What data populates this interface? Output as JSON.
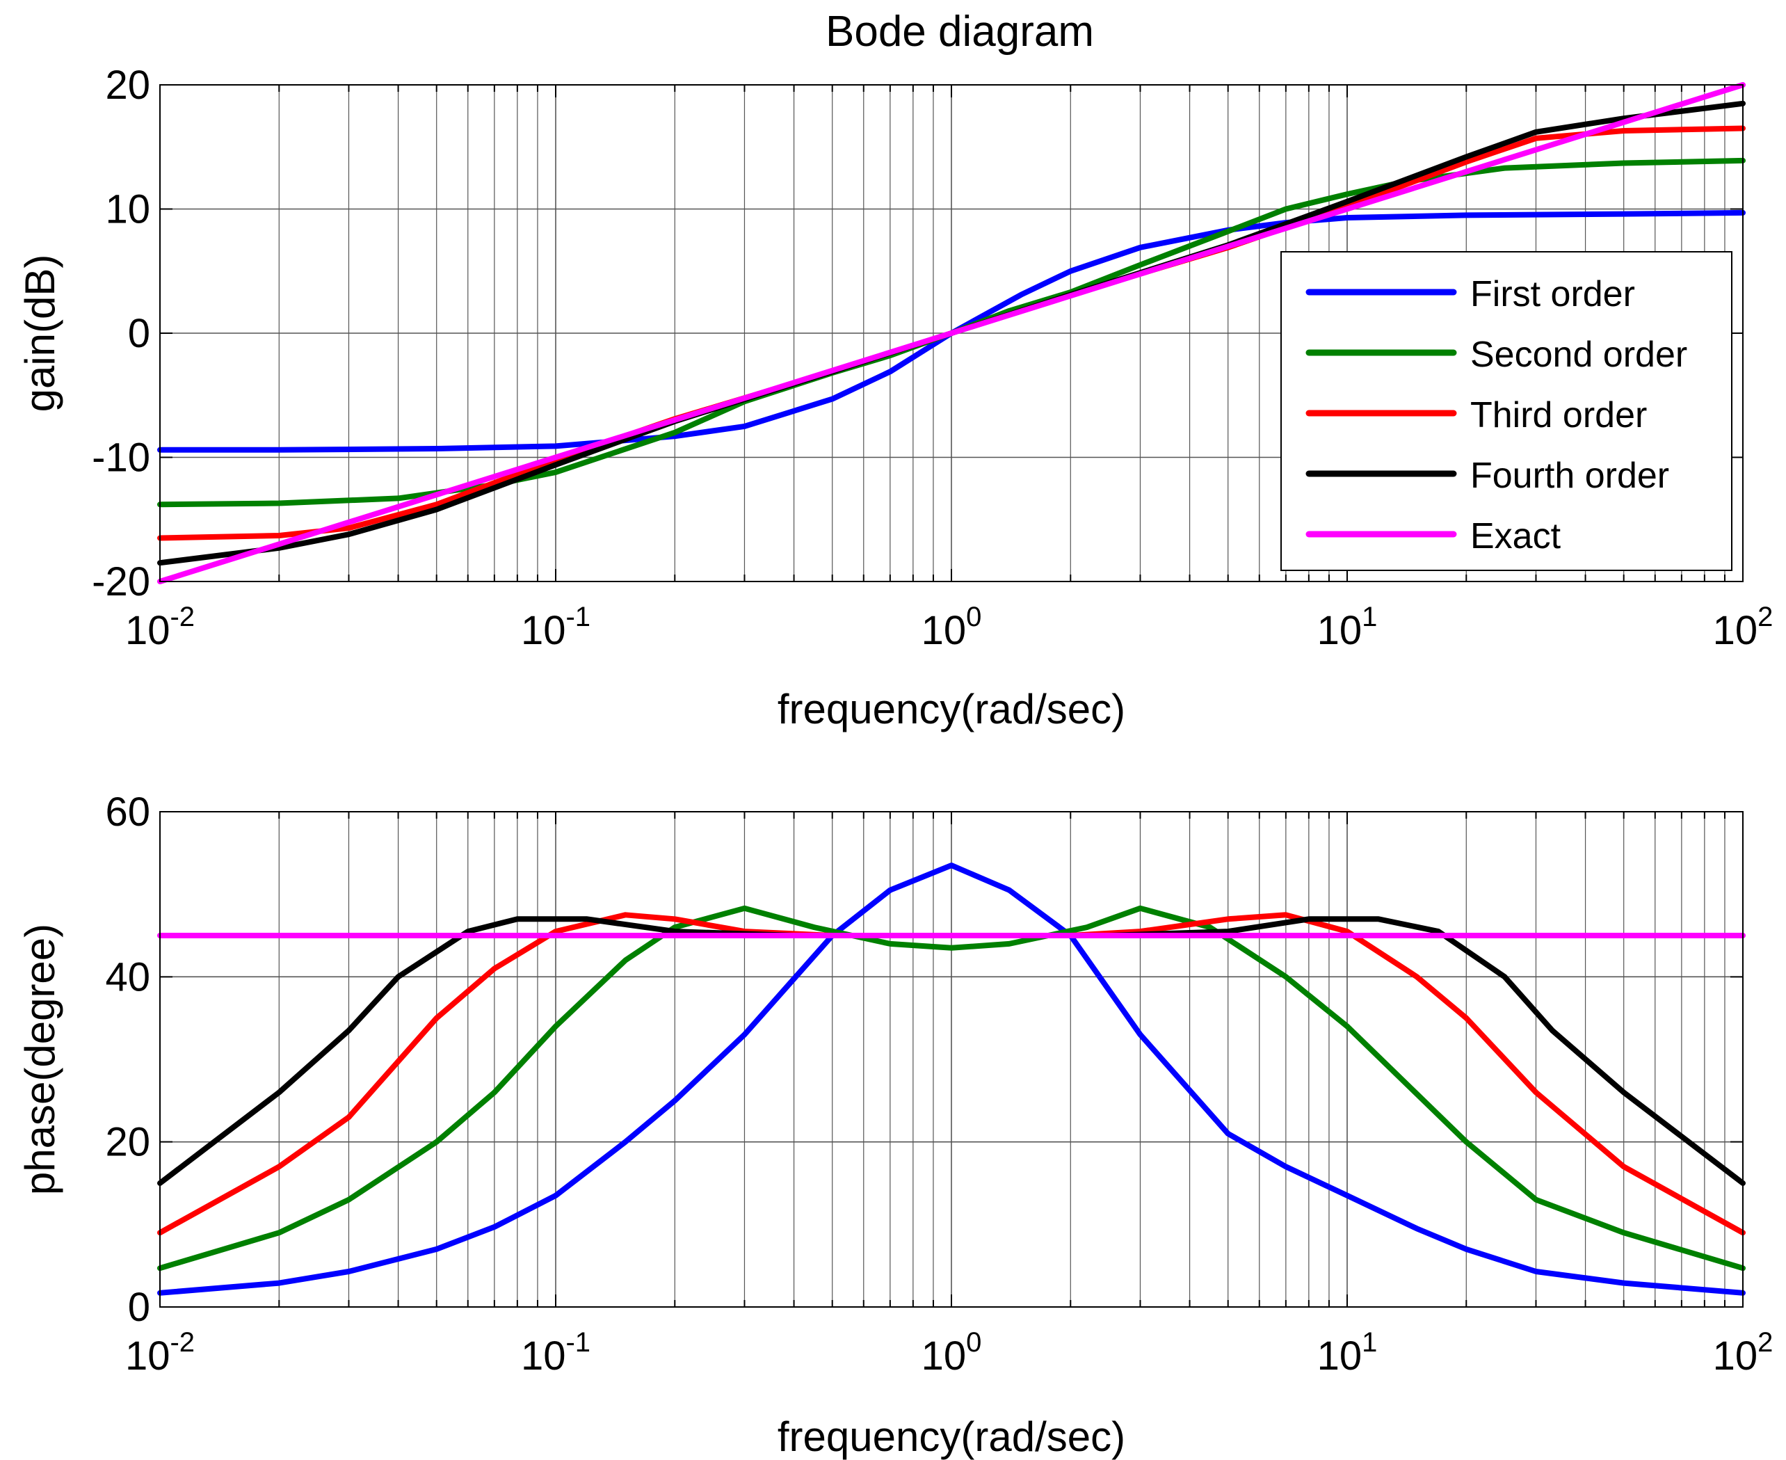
{
  "title": "Bode diagram",
  "colors": {
    "first": "#0000ff",
    "second": "#008000",
    "third": "#ff0000",
    "fourth": "#000000",
    "exact": "#ff00ff"
  },
  "chart_data": [
    {
      "id": "gain",
      "type": "line",
      "xscale": "log",
      "xlim": [
        0.01,
        100
      ],
      "ylim": [
        -20,
        20
      ],
      "xticks": [
        {
          "base": "10",
          "exp": "-2"
        },
        {
          "base": "10",
          "exp": "-1"
        },
        {
          "base": "10",
          "exp": "0"
        },
        {
          "base": "10",
          "exp": "1"
        },
        {
          "base": "10",
          "exp": "2"
        }
      ],
      "yticks": [
        "-20",
        "-10",
        "0",
        "10",
        "20"
      ],
      "ytick_values": [
        -20,
        -10,
        0,
        10,
        20
      ],
      "xlabel": "frequency(rad/sec)",
      "ylabel": "gain(dB)",
      "grid": true,
      "legend_position": "right",
      "legend": [
        "First order",
        "Second order",
        "Third order",
        "Fourth order",
        "Exact"
      ],
      "series": [
        {
          "name": "First order",
          "color_key": "first",
          "x": [
            0.01,
            0.02,
            0.05,
            0.1,
            0.2,
            0.3,
            0.5,
            0.7,
            1,
            1.5,
            2,
            3,
            5,
            7,
            10,
            20,
            50,
            100
          ],
          "y": [
            -9.4,
            -9.4,
            -9.3,
            -9.1,
            -8.3,
            -7.5,
            -5.3,
            -3.1,
            0,
            3.1,
            5.0,
            6.9,
            8.3,
            8.9,
            9.3,
            9.5,
            9.6,
            9.7
          ]
        },
        {
          "name": "Second order",
          "color_key": "second",
          "x": [
            0.01,
            0.02,
            0.04,
            0.07,
            0.1,
            0.2,
            0.3,
            0.5,
            0.7,
            1,
            1.4,
            2,
            3,
            5,
            7,
            10,
            14,
            25,
            50,
            100
          ],
          "y": [
            -13.8,
            -13.7,
            -13.3,
            -12.2,
            -11.2,
            -8.0,
            -5.5,
            -3.2,
            -1.8,
            0,
            1.8,
            3.3,
            5.5,
            8.2,
            10.0,
            11.2,
            12.2,
            13.3,
            13.7,
            13.9
          ]
        },
        {
          "name": "Third order",
          "color_key": "third",
          "x": [
            0.01,
            0.02,
            0.03,
            0.05,
            0.1,
            0.2,
            0.5,
            1,
            2,
            5,
            10,
            20,
            30,
            50,
            100
          ],
          "y": [
            -16.5,
            -16.3,
            -15.7,
            -13.8,
            -10.2,
            -6.9,
            -3.1,
            0,
            3.1,
            6.9,
            10.2,
            13.8,
            15.7,
            16.3,
            16.5
          ]
        },
        {
          "name": "Fourth order",
          "color_key": "fourth",
          "x": [
            0.01,
            0.02,
            0.03,
            0.05,
            0.1,
            0.2,
            0.5,
            1,
            2,
            5,
            10,
            20,
            30,
            50,
            100
          ],
          "y": [
            -18.5,
            -17.3,
            -16.2,
            -14.2,
            -10.6,
            -7.1,
            -3.1,
            0,
            3.1,
            7.1,
            10.6,
            14.2,
            16.2,
            17.3,
            18.5
          ]
        },
        {
          "name": "Exact",
          "color_key": "exact",
          "x": [
            0.01,
            100
          ],
          "y": [
            -20,
            20
          ]
        }
      ]
    },
    {
      "id": "phase",
      "type": "line",
      "xscale": "log",
      "xlim": [
        0.01,
        100
      ],
      "ylim": [
        0,
        60
      ],
      "xticks": [
        {
          "base": "10",
          "exp": "-2"
        },
        {
          "base": "10",
          "exp": "-1"
        },
        {
          "base": "10",
          "exp": "0"
        },
        {
          "base": "10",
          "exp": "1"
        },
        {
          "base": "10",
          "exp": "2"
        }
      ],
      "yticks": [
        "0",
        "20",
        "40",
        "60"
      ],
      "ytick_values": [
        0,
        20,
        40,
        60
      ],
      "xlabel": "frequency(rad/sec)",
      "ylabel": "phase(degree)",
      "grid": true,
      "series": [
        {
          "name": "First order",
          "color_key": "first",
          "x": [
            0.01,
            0.02,
            0.03,
            0.05,
            0.07,
            0.1,
            0.15,
            0.2,
            0.3,
            0.5,
            0.7,
            1,
            1.4,
            2,
            3,
            5,
            7,
            10,
            15,
            20,
            30,
            50,
            100
          ],
          "y": [
            1.7,
            2.9,
            4.3,
            7.0,
            9.7,
            13.5,
            20.0,
            25.0,
            33.0,
            45.0,
            50.5,
            53.5,
            50.5,
            45.0,
            33.0,
            21.0,
            17.0,
            13.5,
            9.5,
            7.0,
            4.3,
            2.9,
            1.7
          ]
        },
        {
          "name": "Second order",
          "color_key": "second",
          "x": [
            0.01,
            0.02,
            0.03,
            0.05,
            0.07,
            0.1,
            0.15,
            0.2,
            0.3,
            0.45,
            0.7,
            1,
            1.4,
            2.2,
            3,
            4.5,
            7,
            10,
            20,
            30,
            50,
            100
          ],
          "y": [
            4.7,
            9.0,
            13.0,
            20.0,
            26.0,
            34.0,
            42.0,
            46.0,
            48.3,
            46.0,
            44.0,
            43.5,
            44.0,
            46.0,
            48.3,
            46.0,
            40.0,
            34.0,
            20.0,
            13.0,
            9.0,
            4.7
          ]
        },
        {
          "name": "Third order",
          "color_key": "third",
          "x": [
            0.01,
            0.02,
            0.03,
            0.05,
            0.07,
            0.1,
            0.15,
            0.2,
            0.3,
            0.5,
            1,
            2,
            3,
            5,
            7,
            10,
            15,
            20,
            30,
            50,
            100
          ],
          "y": [
            9.0,
            17.0,
            23.0,
            35.0,
            41.0,
            45.5,
            47.5,
            47.0,
            45.5,
            45.0,
            45.0,
            45.0,
            45.5,
            47.0,
            47.5,
            45.5,
            40.0,
            35.0,
            26.0,
            17.0,
            9.0
          ]
        },
        {
          "name": "Fourth order",
          "color_key": "fourth",
          "x": [
            0.01,
            0.02,
            0.03,
            0.04,
            0.06,
            0.08,
            0.12,
            0.2,
            0.4,
            1,
            2.5,
            5,
            8,
            12,
            17,
            25,
            33,
            50,
            100
          ],
          "y": [
            15.0,
            26.0,
            33.5,
            40.0,
            45.5,
            47.0,
            47.0,
            45.5,
            45.0,
            45.0,
            45.0,
            45.5,
            47.0,
            47.0,
            45.5,
            40.0,
            33.5,
            26.0,
            15.0
          ]
        },
        {
          "name": "Exact",
          "color_key": "exact",
          "x": [
            0.01,
            100
          ],
          "y": [
            45,
            45
          ]
        }
      ]
    }
  ]
}
